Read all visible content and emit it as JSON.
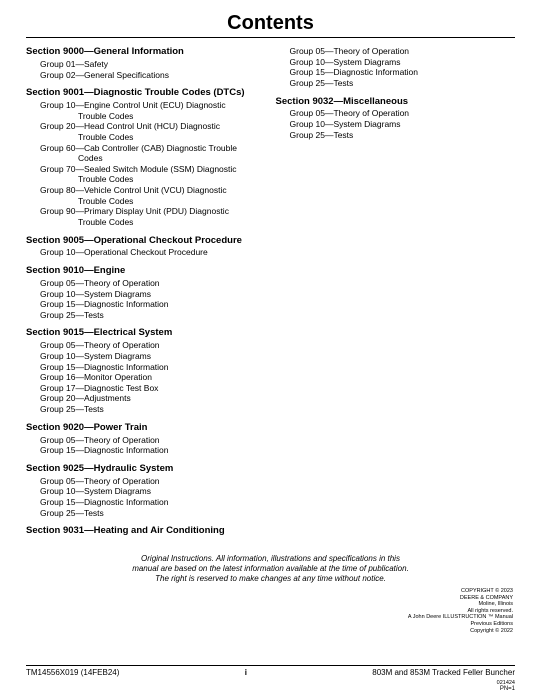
{
  "title": "Contents",
  "leftColumn": [
    {
      "type": "section",
      "text": "Section 9000—General Information",
      "first": true
    },
    {
      "type": "group",
      "text": "Group 01—Safety"
    },
    {
      "type": "group",
      "text": "Group 02—General Specifications"
    },
    {
      "type": "section",
      "text": "Section 9001—Diagnostic Trouble Codes (DTCs)"
    },
    {
      "type": "groupwrap",
      "text": "Group 10—Engine Control Unit (ECU) Diagnostic",
      "cont": "Trouble Codes"
    },
    {
      "type": "groupwrap",
      "text": "Group 20—Head Control Unit (HCU) Diagnostic",
      "cont": "Trouble Codes"
    },
    {
      "type": "groupwrap",
      "text": "Group 60—Cab Controller (CAB) Diagnostic Trouble",
      "cont": "Codes"
    },
    {
      "type": "groupwrap",
      "text": "Group 70—Sealed Switch Module (SSM) Diagnostic",
      "cont": "Trouble Codes"
    },
    {
      "type": "groupwrap",
      "text": "Group 80—Vehicle Control Unit (VCU) Diagnostic",
      "cont": "Trouble Codes"
    },
    {
      "type": "groupwrap",
      "text": "Group 90—Primary Display Unit (PDU) Diagnostic",
      "cont": "Trouble Codes"
    },
    {
      "type": "section",
      "text": "Section 9005—Operational Checkout Procedure"
    },
    {
      "type": "group",
      "text": "Group 10—Operational Checkout Procedure"
    },
    {
      "type": "section",
      "text": "Section 9010—Engine"
    },
    {
      "type": "group",
      "text": "Group 05—Theory of Operation"
    },
    {
      "type": "group",
      "text": "Group 10—System Diagrams"
    },
    {
      "type": "group",
      "text": "Group 15—Diagnostic Information"
    },
    {
      "type": "group",
      "text": "Group 25—Tests"
    },
    {
      "type": "section",
      "text": "Section 9015—Electrical System"
    },
    {
      "type": "group",
      "text": "Group 05—Theory of Operation"
    },
    {
      "type": "group",
      "text": "Group 10—System Diagrams"
    },
    {
      "type": "group",
      "text": "Group 15—Diagnostic Information"
    },
    {
      "type": "group",
      "text": "Group 16—Monitor Operation"
    },
    {
      "type": "group",
      "text": "Group 17—Diagnostic Test Box"
    },
    {
      "type": "group",
      "text": "Group 20—Adjustments"
    },
    {
      "type": "group",
      "text": "Group 25—Tests"
    },
    {
      "type": "section",
      "text": "Section 9020—Power Train"
    },
    {
      "type": "group",
      "text": "Group 05—Theory of Operation"
    },
    {
      "type": "group",
      "text": "Group 15—Diagnostic Information"
    },
    {
      "type": "section",
      "text": "Section 9025—Hydraulic System"
    },
    {
      "type": "group",
      "text": "Group 05—Theory of Operation"
    },
    {
      "type": "group",
      "text": "Group 10—System Diagrams"
    },
    {
      "type": "group",
      "text": "Group 15—Diagnostic Information"
    },
    {
      "type": "group",
      "text": "Group 25—Tests"
    },
    {
      "type": "section",
      "text": "Section 9031—Heating and Air Conditioning"
    }
  ],
  "rightColumn": [
    {
      "type": "group",
      "text": "Group 05—Theory of Operation"
    },
    {
      "type": "group",
      "text": "Group 10—System Diagrams"
    },
    {
      "type": "group",
      "text": "Group 15—Diagnostic Information"
    },
    {
      "type": "group",
      "text": "Group 25—Tests"
    },
    {
      "type": "section",
      "text": "Section 9032—Miscellaneous"
    },
    {
      "type": "group",
      "text": "Group 05—Theory of Operation"
    },
    {
      "type": "group",
      "text": "Group 10—System Diagrams"
    },
    {
      "type": "group",
      "text": "Group 25—Tests"
    }
  ],
  "footerNote": {
    "line1": "Original Instructions. All information, illustrations and specifications in this",
    "line2": "manual are based on the latest information available at the time of publication.",
    "line3": "The right is reserved to make changes at any time without notice."
  },
  "copyright": {
    "line1": "COPYRIGHT © 2023",
    "line2": "DEERE & COMPANY",
    "line3": "Moline, Illinois",
    "line4": "All rights reserved.",
    "line5": "A John Deere ILLUSTRUCTION ™ Manual",
    "line6": "Previous Editions",
    "line7": "Copyright © 2022"
  },
  "bottom": {
    "left": "TM14556X019 (14FEB24)",
    "center": "i",
    "right": "803M and 853M Tracked Feller Buncher",
    "rightSub": "021424",
    "pn": "PN=1"
  }
}
